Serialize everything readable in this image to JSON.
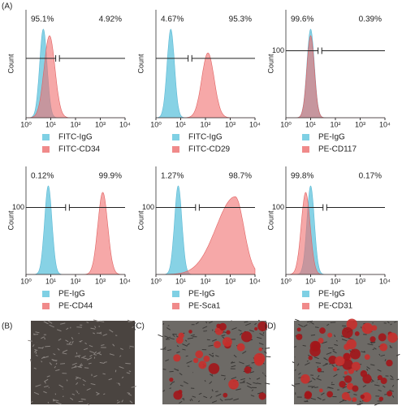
{
  "figure_label": "(A)",
  "panels": [
    {
      "left_percent": "95.1%",
      "right_percent": "4.92%",
      "y_label": "Count",
      "y_ticks": [],
      "x_ticks": [
        "10⁰",
        "10¹",
        "10²",
        "10³",
        "10⁴"
      ],
      "legend": [
        "FITC-IgG",
        "FITC-CD34"
      ]
    },
    {
      "left_percent": "4.67%",
      "right_percent": "95.3%",
      "y_label": "Count",
      "y_ticks": [],
      "x_ticks": [
        "10⁰",
        "10¹",
        "10²",
        "10³",
        "10⁴"
      ],
      "legend": [
        "FITC-IgG",
        "FITC-CD29"
      ]
    },
    {
      "left_percent": "99.6%",
      "right_percent": "0.39%",
      "y_label": "Count",
      "y_ticks": [
        "100"
      ],
      "x_ticks": [
        "10⁰",
        "10¹",
        "10²",
        "10³",
        "10⁴"
      ],
      "legend": [
        "PE-IgG",
        "PE-CD117"
      ]
    },
    {
      "left_percent": "0.12%",
      "right_percent": "99.9%",
      "y_label": "Count",
      "y_ticks": [
        "100"
      ],
      "x_ticks": [
        "10⁰",
        "10¹",
        "10²",
        "10³",
        "10⁴"
      ],
      "legend": [
        "PE-IgG",
        "PE-CD44"
      ]
    },
    {
      "left_percent": "1.27%",
      "right_percent": "98.7%",
      "y_label": "Count",
      "y_ticks": [
        "100"
      ],
      "x_ticks": [
        "10⁰",
        "10¹",
        "10²",
        "10³",
        "10⁴"
      ],
      "legend": [
        "PE-IgG",
        "PE-Sca1"
      ]
    },
    {
      "left_percent": "99.8%",
      "right_percent": "0.17%",
      "y_label": "Count",
      "y_ticks": [
        "100"
      ],
      "x_ticks": [
        "10⁰",
        "10¹",
        "10²",
        "10³",
        "10⁴"
      ],
      "legend": [
        "PE-IgG",
        "PE-CD31"
      ]
    }
  ],
  "image_labels": [
    "(B)",
    "(C)",
    "(D)"
  ]
}
